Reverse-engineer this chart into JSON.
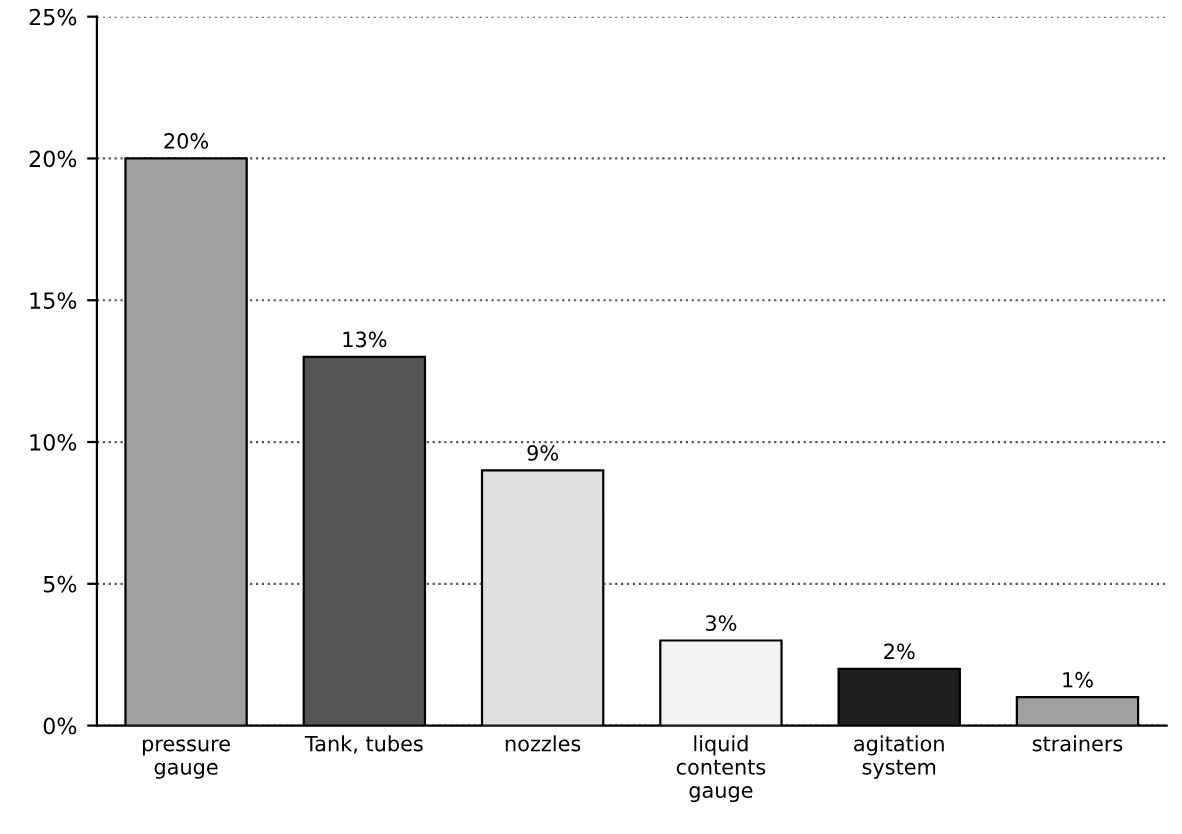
{
  "chart_data": {
    "type": "bar",
    "categories": [
      "pressure\ngauge",
      "Tank, tubes",
      "nozzles",
      "liquid\ncontents\ngauge",
      "agitation\nsystem",
      "strainers"
    ],
    "values": [
      20,
      13,
      9,
      3,
      2,
      1
    ],
    "colors": [
      "#a0a0a0",
      "#555555",
      "#e0e0e0",
      "#f4f4f4",
      "#1e1e1e",
      "#a0a0a0"
    ],
    "value_labels": [
      "20%",
      "13%",
      "9%",
      "3%",
      "2%",
      "1%"
    ],
    "ylim": [
      0,
      25
    ],
    "yticks": [
      {
        "value": 0,
        "label": "0%"
      },
      {
        "value": 5,
        "label": "5%"
      },
      {
        "value": 10,
        "label": "10%"
      },
      {
        "value": 15,
        "label": "15%"
      },
      {
        "value": 20,
        "label": "20%"
      },
      {
        "value": 25,
        "label": "25%"
      }
    ],
    "grid": "y"
  }
}
